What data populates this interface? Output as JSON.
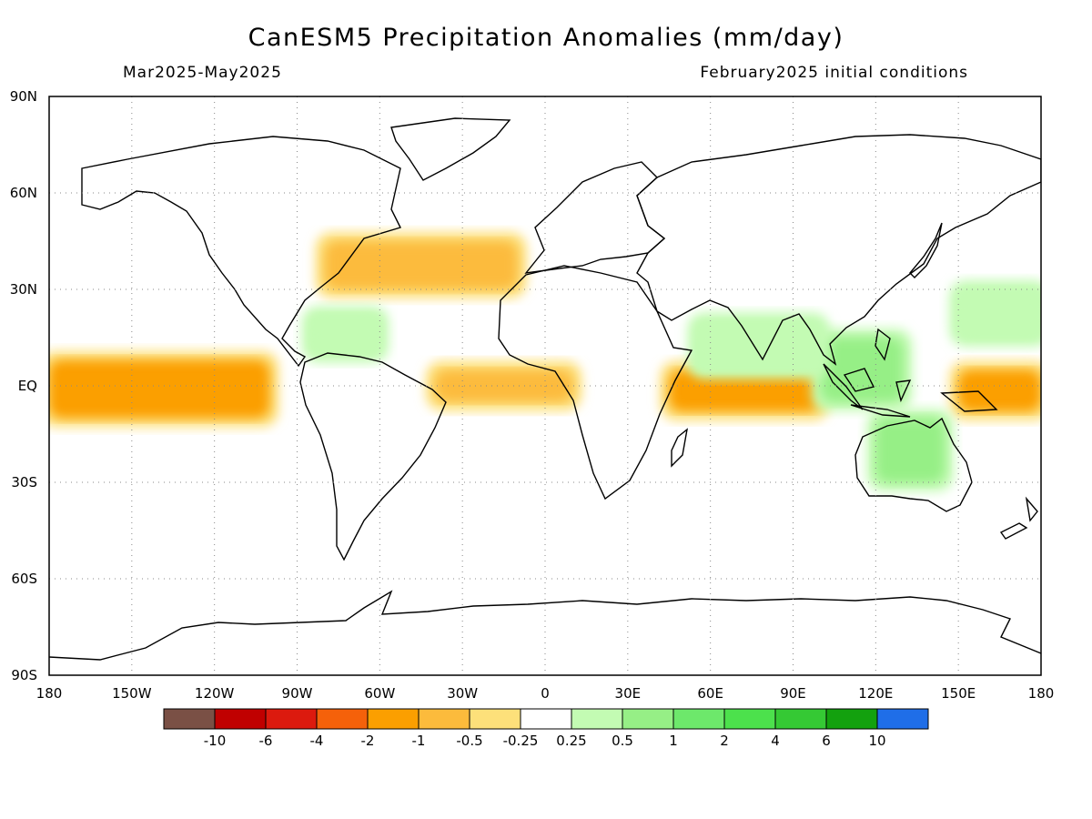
{
  "title": "CanESM5 Precipitation Anomalies (mm/day)",
  "period": "Mar2025-May2025",
  "init": "February2025 initial conditions",
  "lat_labels": [
    "90N",
    "60N",
    "30N",
    "EQ",
    "30S",
    "60S",
    "90S"
  ],
  "lat_values": [
    90,
    60,
    30,
    0,
    -30,
    -60,
    -90
  ],
  "lon_labels": [
    "180",
    "150W",
    "120W",
    "90W",
    "60W",
    "30W",
    "0",
    "30E",
    "60E",
    "90E",
    "120E",
    "150E",
    "180"
  ],
  "lon_values": [
    -180,
    -150,
    -120,
    -90,
    -60,
    -30,
    0,
    30,
    60,
    90,
    120,
    150,
    180
  ],
  "colorbar": {
    "colors": [
      "#7a5045",
      "#c00000",
      "#dc1a0e",
      "#f5610a",
      "#fb9f00",
      "#fcbb3c",
      "#fde07a",
      "#ffffff",
      "#c3fbb3",
      "#96ef86",
      "#6de86b",
      "#4ce14c",
      "#35c934",
      "#13a10e",
      "#1f6ee8"
    ],
    "labels": [
      "-10",
      "-6",
      "-4",
      "-2",
      "-1",
      "-0.5",
      "-0.25",
      "0.25",
      "0.5",
      "1",
      "2",
      "4",
      "6",
      "10"
    ]
  },
  "anomaly_regions": [
    {
      "name": "Equatorial central Pacific",
      "category": -3,
      "lon": [
        -180,
        -100
      ],
      "lat": [
        -10,
        8
      ]
    },
    {
      "name": "Equatorial western Pacific",
      "category": -3,
      "lon": [
        150,
        180
      ],
      "lat": [
        -8,
        5
      ]
    },
    {
      "name": "Equatorial Indian Ocean",
      "category": -3,
      "lon": [
        45,
        100
      ],
      "lat": [
        -8,
        5
      ]
    },
    {
      "name": "Equatorial Atlantic",
      "category": -2,
      "lon": [
        -40,
        10
      ],
      "lat": [
        -5,
        5
      ]
    },
    {
      "name": "North Atlantic storm track",
      "category": -2,
      "lon": [
        -80,
        -10
      ],
      "lat": [
        30,
        45
      ]
    },
    {
      "name": "Maritime Continent",
      "category": 2,
      "lon": [
        100,
        130
      ],
      "lat": [
        -5,
        15
      ]
    },
    {
      "name": "Northern Australia",
      "category": 2,
      "lon": [
        120,
        145
      ],
      "lat": [
        -30,
        -10
      ]
    },
    {
      "name": "Caribbean",
      "category": 1,
      "lon": [
        -85,
        -60
      ],
      "lat": [
        10,
        22
      ]
    },
    {
      "name": "Arabian Sea / Bay of Bengal",
      "category": 1,
      "lon": [
        55,
        100
      ],
      "lat": [
        5,
        20
      ]
    },
    {
      "name": "North Pacific subtropics",
      "category": 1,
      "lon": [
        150,
        180
      ],
      "lat": [
        15,
        30
      ]
    }
  ]
}
